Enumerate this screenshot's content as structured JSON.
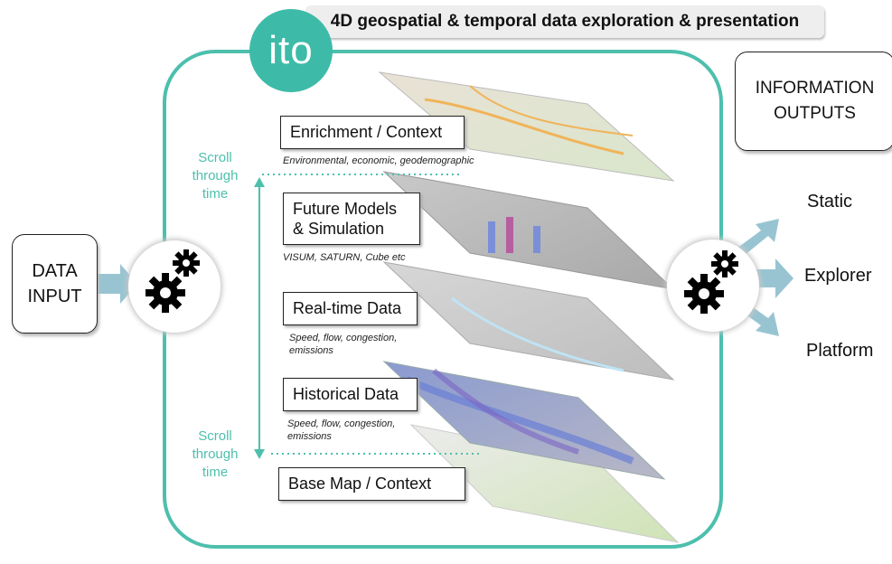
{
  "banner": {
    "title": "4D geospatial & temporal data exploration & presentation"
  },
  "logo": {
    "text": "ito"
  },
  "data_input": {
    "line1": "DATA",
    "line2": "INPUT"
  },
  "information_outputs": {
    "line1": "INFORMATION",
    "line2": "OUTPUTS"
  },
  "outputs": [
    "Static",
    "Explorer",
    "Platform"
  ],
  "scroll_top": [
    "Scroll",
    "through",
    "time"
  ],
  "scroll_bottom": [
    "Scroll",
    "through",
    "time"
  ],
  "layers": [
    {
      "title": "Enrichment / Context",
      "subtitle": "Environmental, economic, geodemographic"
    },
    {
      "title_line1": "Future Models",
      "title_line2": "& Simulation",
      "subtitle": "VISUM, SATURN, Cube etc"
    },
    {
      "title": "Real-time Data",
      "subtitle_line1": "Speed, flow, congestion,",
      "subtitle_line2": "emissions"
    },
    {
      "title": "Historical Data",
      "subtitle_line1": "Speed, flow, congestion,",
      "subtitle_line2": "emissions"
    },
    {
      "title": "Base Map / Context"
    }
  ],
  "colors": {
    "accent": "#4dbfad",
    "arrow": "#98c4d2",
    "gear": "#000000"
  }
}
